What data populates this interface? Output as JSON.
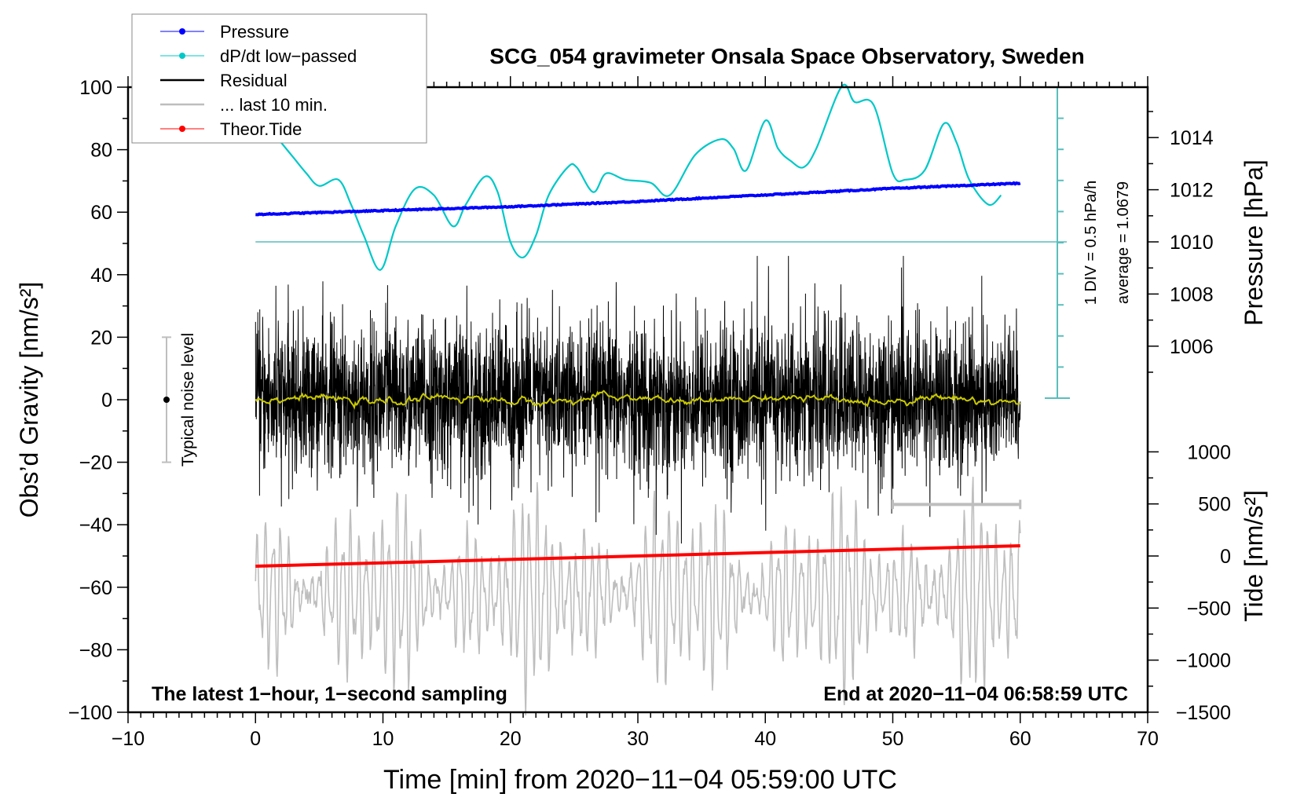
{
  "chart_data": {
    "type": "line",
    "title": "SCG_054 gravimeter Onsala Space Observatory, Sweden",
    "xlabel": "Time [min] from 2020−11−04 05:59:00 UTC",
    "ylabel_left": "Obs’d Gravity [nm/s²]",
    "ylabel_right_top": "Pressure [hPa]",
    "ylabel_right_bottom": "Tide [nm/s²]",
    "xlim": [
      -10,
      70
    ],
    "ylim_left": [
      -100,
      100
    ],
    "xticks": [
      "−10",
      "0",
      "10",
      "20",
      "30",
      "40",
      "50",
      "60",
      "70"
    ],
    "xtick_values": [
      -10,
      0,
      10,
      20,
      30,
      40,
      50,
      60,
      70
    ],
    "yticks_left": [
      "100",
      "80",
      "60",
      "40",
      "20",
      "0",
      "−20",
      "−40",
      "−60",
      "−80",
      "−100"
    ],
    "ytick_values_left": [
      100,
      80,
      60,
      40,
      20,
      0,
      -20,
      -40,
      -60,
      -80,
      -100
    ],
    "pressure_ticks": [
      "1014",
      "1012",
      "1010",
      "1008",
      "1006"
    ],
    "pressure_tick_values": [
      1014,
      1012,
      1010,
      1008,
      1006
    ],
    "tide_ticks": [
      "1000",
      "500",
      "0",
      "−500",
      "−1000",
      "−1500"
    ],
    "tide_tick_values": [
      1000,
      500,
      0,
      -500,
      -1000,
      -1500
    ],
    "annotation_left": "The latest 1−hour, 1−second sampling",
    "annotation_right": "End at 2020−11−04 06:58:59 UTC",
    "noise_label": "Typical noise level",
    "noise_level_range": [
      -20,
      20
    ],
    "dpdt_scale_label": "1 DIV = 0.5 hPa/h",
    "dpdt_average_label": "average = 1.0679",
    "legend": [
      {
        "label": "Pressure",
        "color": "#0000ff",
        "marker": true
      },
      {
        "label": "dP/dt low−passed",
        "color": "#00c8c8",
        "marker": true
      },
      {
        "label": "Residual",
        "color": "#000000",
        "marker": false
      },
      {
        "label": "... last 10 min.",
        "color": "#bebebe",
        "marker": false
      },
      {
        "label": "Theor.Tide",
        "color": "#ff0000",
        "marker": true
      }
    ],
    "legend_position": "top-left",
    "series": [
      {
        "name": "Pressure",
        "axis": "pressure_hPa",
        "color": "#0000ff",
        "x": [
          0,
          10,
          20,
          30,
          40,
          50,
          60
        ],
        "y": [
          1011.05,
          1011.2,
          1011.35,
          1011.55,
          1011.8,
          1012.05,
          1012.25
        ]
      },
      {
        "name": "dP/dt low-passed",
        "axis": "hPa_per_h_relative",
        "color": "#00c8c8",
        "x": [
          2,
          3,
          4,
          5,
          6.5,
          7.5,
          8.5,
          9.8,
          11,
          12.5,
          14,
          15.5,
          16.5,
          18,
          19,
          20,
          21,
          22,
          23,
          24.5,
          25.2,
          26.5,
          27.5,
          29,
          31,
          32.5,
          34.5,
          36.5,
          37.5,
          38.5,
          40,
          41,
          42,
          43,
          44,
          46,
          47,
          48.5,
          50,
          51,
          52.5,
          54,
          55,
          56,
          57.5,
          58.5
        ],
        "y": [
          1.6,
          1.35,
          1.1,
          0.9,
          1.0,
          0.6,
          0.1,
          -0.45,
          0.25,
          0.85,
          0.75,
          0.25,
          0.6,
          1.05,
          0.8,
          0.0,
          -0.25,
          0.1,
          0.75,
          1.2,
          1.2,
          0.8,
          1.1,
          1.0,
          0.95,
          0.75,
          1.4,
          1.65,
          1.5,
          1.15,
          1.95,
          1.5,
          1.3,
          1.2,
          1.5,
          2.5,
          2.25,
          2.2,
          1.1,
          1.0,
          1.15,
          1.9,
          1.6,
          1.0,
          0.6,
          0.75
        ]
      },
      {
        "name": "Residual",
        "axis": "gravity_nm_s2",
        "color": "#000000",
        "x_range": [
          0,
          60
        ],
        "samples_per_min": 60,
        "std": 12,
        "max_abs": 46
      },
      {
        "name": "Residual smoothed",
        "axis": "gravity_nm_s2",
        "color": "#c8c800",
        "x_range": [
          0,
          60
        ],
        "std": 1.2
      },
      {
        "name": "... last 10 min.",
        "axis": "gravity_nm_s2",
        "color": "#bebebe",
        "source_window": [
          50,
          60
        ],
        "center": -62,
        "max_amplitude": 38
      },
      {
        "name": "Theor.Tide",
        "axis": "tide_nm_s2",
        "color": "#ff0000",
        "x": [
          0,
          10,
          20,
          30,
          40,
          50,
          60
        ],
        "y": [
          -98,
          -66,
          -33,
          0,
          33,
          66,
          98
        ]
      }
    ],
    "last10_bracket": {
      "x": [
        50,
        60
      ],
      "y": -33.5
    }
  }
}
